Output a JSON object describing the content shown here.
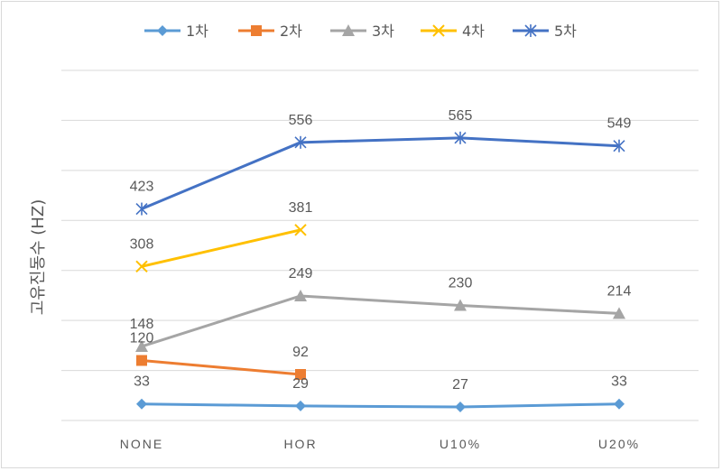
{
  "chart_data": {
    "type": "line",
    "title": "",
    "xlabel": "",
    "ylabel": "고유진동수 (HZ)",
    "categories": [
      "NONE",
      "HOR",
      "U10%",
      "U20%"
    ],
    "ylim": [
      0,
      700
    ],
    "grid": true,
    "legend_position": "top",
    "series": [
      {
        "name": "1차",
        "color": "#5b9bd5",
        "marker": "diamond",
        "values": [
          33,
          29,
          27,
          33
        ]
      },
      {
        "name": "2차",
        "color": "#ed7d31",
        "marker": "square",
        "values": [
          120,
          92,
          null,
          null
        ]
      },
      {
        "name": "3차",
        "color": "#a5a5a5",
        "marker": "triangle",
        "values": [
          148,
          249,
          230,
          214
        ]
      },
      {
        "name": "4차",
        "color": "#ffc000",
        "marker": "x",
        "values": [
          308,
          381,
          null,
          null
        ]
      },
      {
        "name": "5차",
        "color": "#4472c4",
        "marker": "star",
        "values": [
          423,
          556,
          565,
          549
        ]
      }
    ]
  }
}
